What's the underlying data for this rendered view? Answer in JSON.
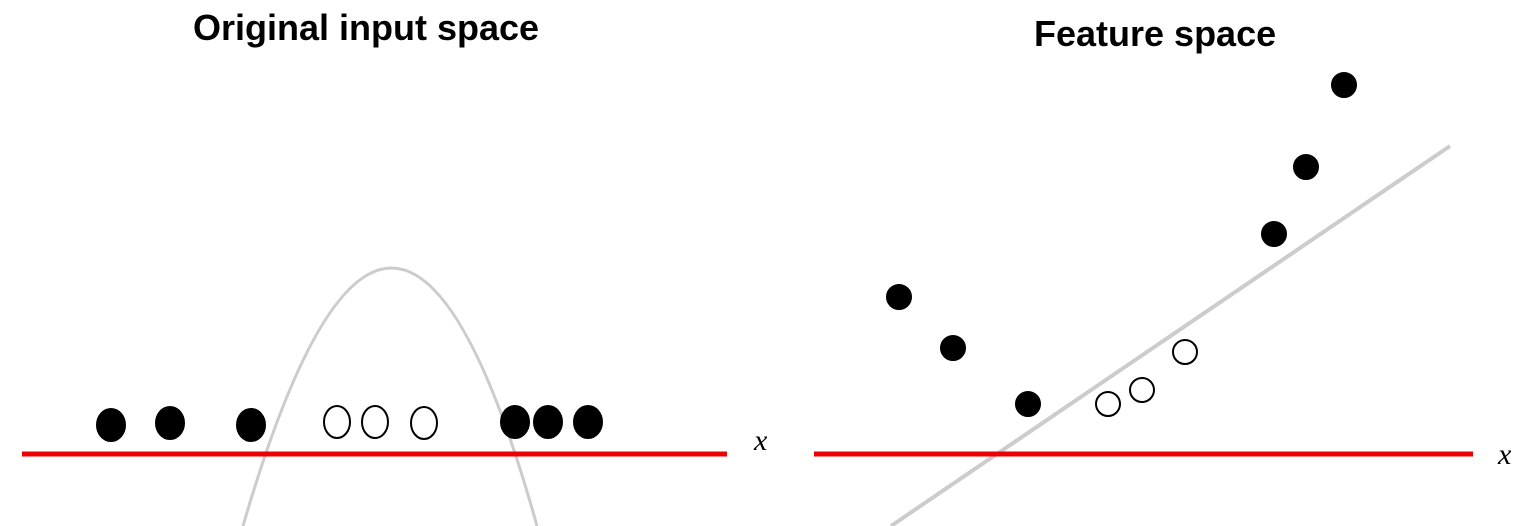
{
  "left_panel": {
    "title": "Original input space",
    "axis_label": "x"
  },
  "right_panel": {
    "title": "Feature space",
    "axis_label": "x"
  },
  "colors": {
    "axis": "#ee0000",
    "curve": "#cccccc",
    "point_filled": "#000000",
    "point_empty": "#ffffff"
  }
}
